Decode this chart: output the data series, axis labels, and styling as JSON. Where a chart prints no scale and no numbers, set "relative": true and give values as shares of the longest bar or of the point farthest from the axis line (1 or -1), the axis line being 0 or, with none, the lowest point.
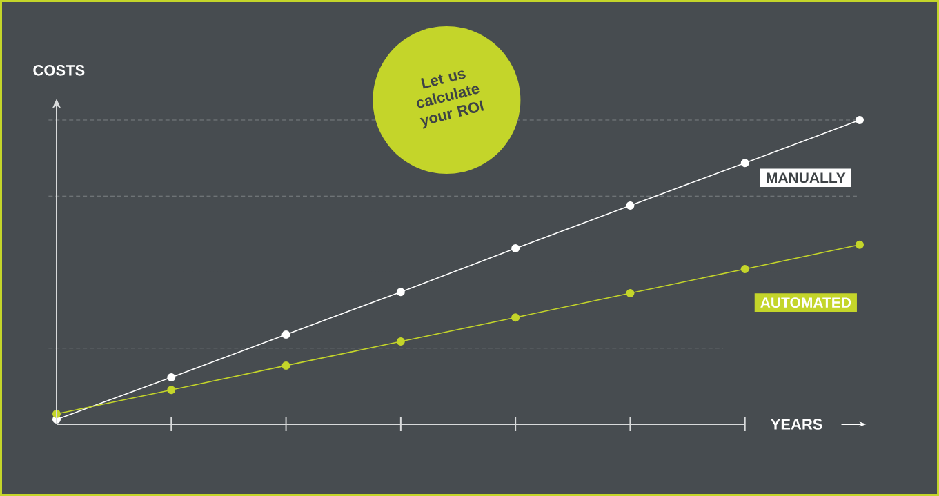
{
  "chart_data": {
    "type": "line",
    "relative": true,
    "xlabel": "YEARS",
    "ylabel": "COSTS",
    "categories": [
      null,
      null,
      null,
      null,
      null,
      null,
      null,
      null
    ],
    "series": [
      {
        "name": "MANUALLY",
        "color": "#ffffff",
        "values": [
          0.016,
          0.154,
          0.295,
          0.435,
          0.578,
          0.719,
          0.859,
          1.0
        ]
      },
      {
        "name": "AUTOMATED",
        "color": "#c4d52a",
        "values": [
          0.034,
          0.113,
          0.193,
          0.272,
          0.351,
          0.431,
          0.51,
          0.59
        ]
      }
    ],
    "annotations": [
      "Let us calculate your ROI"
    ],
    "grid": "y",
    "marker": "circle",
    "line_style": "solid"
  }
}
